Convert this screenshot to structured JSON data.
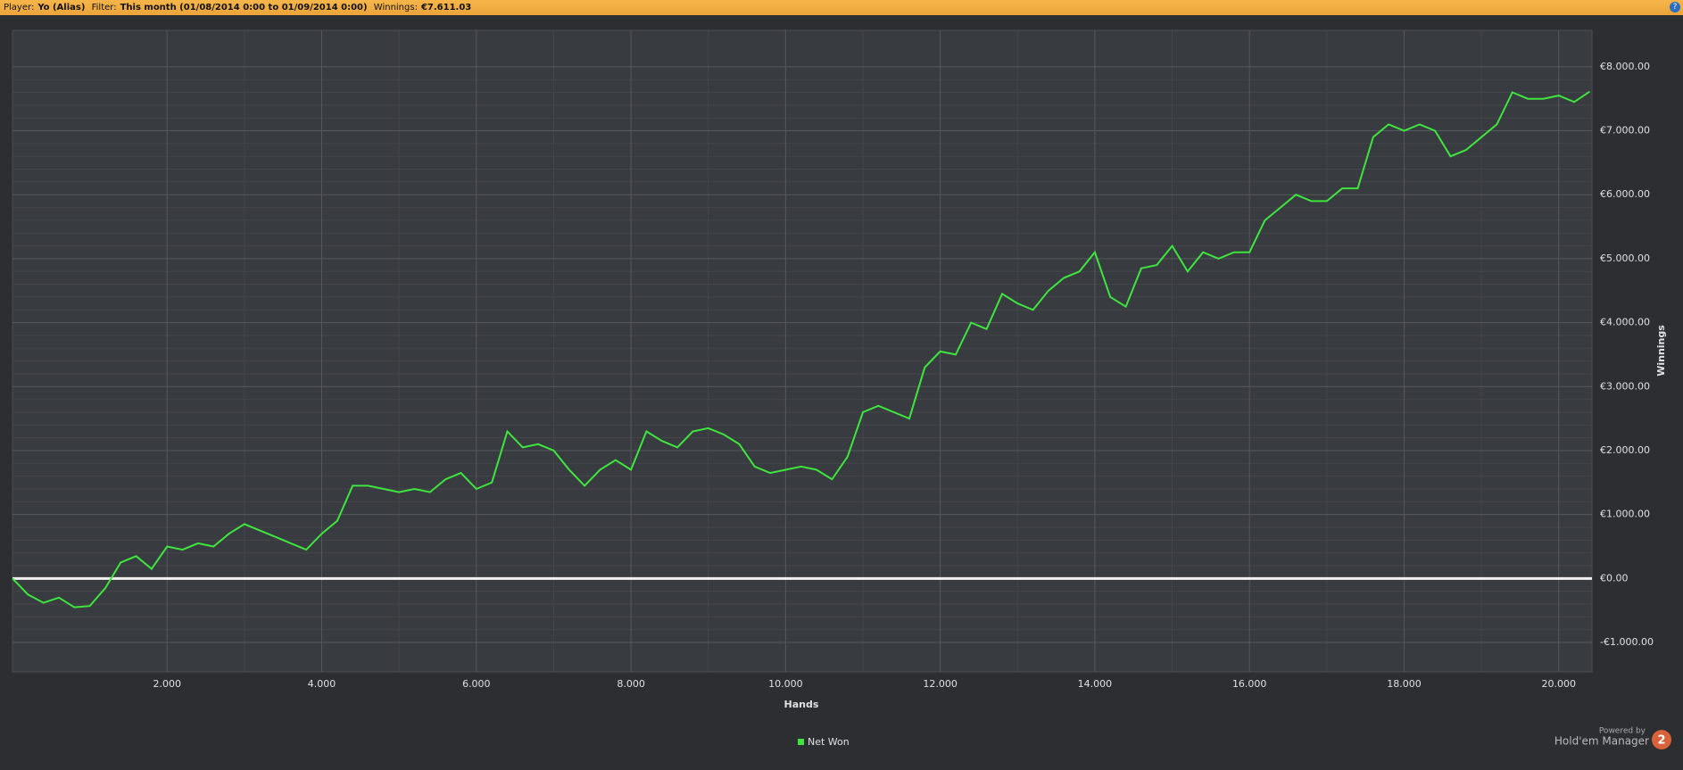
{
  "header": {
    "player_label": "Player:",
    "player": "Yo (Alias)",
    "filter_label": "Filter:",
    "filter": "This month (01/08/2014 0:00 to 01/09/2014 0:00)",
    "winnings_label": "Winnings:",
    "winnings": "€7.611.03",
    "help_icon": "?"
  },
  "branding": {
    "powered_by": "Powered by",
    "product": "Hold'em Manager",
    "logo_text": "2"
  },
  "chart_data": {
    "type": "line",
    "xlabel": "Hands",
    "ylabel": "Winnings",
    "xlim": [
      0,
      20430
    ],
    "ylim": [
      -1460,
      8570
    ],
    "xticks": [
      {
        "value": 2000,
        "label": "2.000"
      },
      {
        "value": 4000,
        "label": "4.000"
      },
      {
        "value": 6000,
        "label": "6.000"
      },
      {
        "value": 8000,
        "label": "8.000"
      },
      {
        "value": 10000,
        "label": "10.000"
      },
      {
        "value": 12000,
        "label": "12.000"
      },
      {
        "value": 14000,
        "label": "14.000"
      },
      {
        "value": 16000,
        "label": "16.000"
      },
      {
        "value": 18000,
        "label": "18.000"
      },
      {
        "value": 20000,
        "label": "20.000"
      }
    ],
    "yticks": [
      {
        "value": -1000,
        "label": "-€1.000.00"
      },
      {
        "value": 0,
        "label": "€0.00"
      },
      {
        "value": 1000,
        "label": "€1.000.00"
      },
      {
        "value": 2000,
        "label": "€2.000.00"
      },
      {
        "value": 3000,
        "label": "€3.000.00"
      },
      {
        "value": 4000,
        "label": "€4.000.00"
      },
      {
        "value": 5000,
        "label": "€5.000.00"
      },
      {
        "value": 6000,
        "label": "€6.000.00"
      },
      {
        "value": 7000,
        "label": "€7.000.00"
      },
      {
        "value": 8000,
        "label": "€8.000.00"
      }
    ],
    "grid": true,
    "minor_grid": true,
    "legend": "bottom",
    "x": [
      0,
      200,
      400,
      600,
      800,
      1000,
      1200,
      1400,
      1600,
      1800,
      2000,
      2200,
      2400,
      2600,
      2800,
      3000,
      3200,
      3400,
      3600,
      3800,
      4000,
      4200,
      4400,
      4600,
      4800,
      5000,
      5200,
      5400,
      5600,
      5800,
      6000,
      6200,
      6400,
      6600,
      6800,
      7000,
      7200,
      7400,
      7600,
      7800,
      8000,
      8200,
      8400,
      8600,
      8800,
      9000,
      9200,
      9400,
      9600,
      9800,
      10000,
      10200,
      10400,
      10600,
      10800,
      11000,
      11200,
      11400,
      11600,
      11800,
      12000,
      12200,
      12400,
      12600,
      12800,
      13000,
      13200,
      13400,
      13600,
      13800,
      14000,
      14200,
      14400,
      14600,
      14800,
      15000,
      15200,
      15400,
      15600,
      15800,
      16000,
      16200,
      16400,
      16600,
      16800,
      17000,
      17200,
      17400,
      17600,
      17800,
      18000,
      18200,
      18400,
      18600,
      18800,
      19000,
      19200,
      19400,
      19600,
      19800,
      20000,
      20200,
      20400
    ],
    "series": [
      {
        "name": "Net Won",
        "color": "#3fe53f",
        "values": [
          0,
          -250,
          -380,
          -300,
          -450,
          -430,
          -150,
          250,
          350,
          150,
          500,
          450,
          550,
          500,
          700,
          850,
          750,
          650,
          550,
          450,
          700,
          900,
          1450,
          1450,
          1400,
          1350,
          1400,
          1350,
          1550,
          1650,
          1400,
          1500,
          2300,
          2050,
          2100,
          2000,
          1700,
          1450,
          1700,
          1850,
          1700,
          2300,
          2150,
          2050,
          2300,
          2350,
          2250,
          2100,
          1750,
          1650,
          1700,
          1750,
          1700,
          1550,
          1900,
          2600,
          2700,
          2600,
          2500,
          3300,
          3550,
          3500,
          4000,
          3900,
          4450,
          4300,
          4200,
          4500,
          4700,
          4800,
          5100,
          4400,
          4250,
          4850,
          4900,
          5200,
          4800,
          5100,
          5000,
          5100,
          5100,
          5600,
          5800,
          6000,
          5900,
          5900,
          6100,
          6100,
          6900,
          7100,
          7000,
          7100,
          7000,
          6600,
          6700,
          6900,
          7100,
          7600,
          7500,
          7500,
          7550,
          7450,
          7611
        ]
      }
    ]
  }
}
